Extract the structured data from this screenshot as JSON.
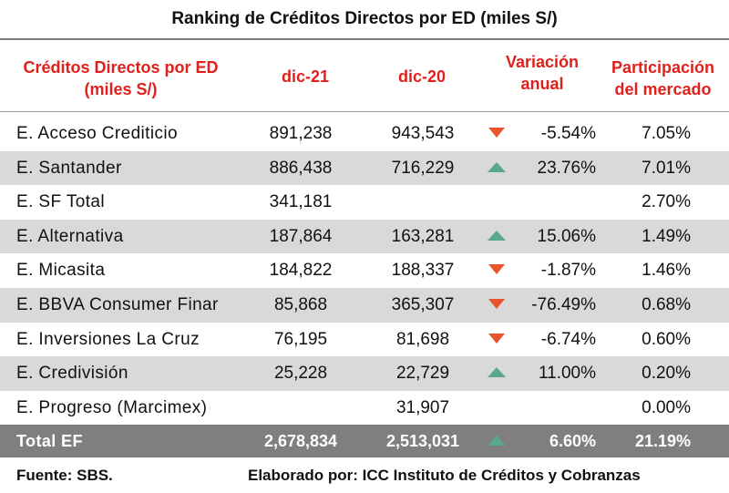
{
  "title": "Ranking de Créditos Directos por ED (miles S/)",
  "headers": {
    "name_line1": "Créditos Directos por ED",
    "name_line2": "(miles S/)",
    "dic21": "dic-21",
    "dic20": "dic-20",
    "var_line1": "Variación",
    "var_line2": "anual",
    "part_line1": "Participación",
    "part_line2": "del mercado"
  },
  "colors": {
    "header_red": "#e0201c",
    "row_shade": "#d9d9d9",
    "total_bg": "#7f7f7f",
    "down_arrow": "#e8542b",
    "up_arrow": "#5aa88a"
  },
  "rows": [
    {
      "name": "E. Acceso Crediticio",
      "dic21": "891,238",
      "dic20": "943,543",
      "trend": "down",
      "var": "-5.54%",
      "part": "7.05%"
    },
    {
      "name": "E. Santander",
      "dic21": "886,438",
      "dic20": "716,229",
      "trend": "up",
      "var": "23.76%",
      "part": "7.01%"
    },
    {
      "name": "E. SF Total",
      "dic21": "341,181",
      "dic20": "",
      "trend": "",
      "var": "",
      "part": "2.70%"
    },
    {
      "name": "E. Alternativa",
      "dic21": "187,864",
      "dic20": "163,281",
      "trend": "up",
      "var": "15.06%",
      "part": "1.49%"
    },
    {
      "name": "E. Micasita",
      "dic21": "184,822",
      "dic20": "188,337",
      "trend": "down",
      "var": "-1.87%",
      "part": "1.46%"
    },
    {
      "name": "E. BBVA Consumer Finar",
      "dic21": "85,868",
      "dic20": "365,307",
      "trend": "down",
      "var": "-76.49%",
      "part": "0.68%"
    },
    {
      "name": "E. Inversiones La Cruz",
      "dic21": "76,195",
      "dic20": "81,698",
      "trend": "down",
      "var": "-6.74%",
      "part": "0.60%"
    },
    {
      "name": "E. Credivisión",
      "dic21": "25,228",
      "dic20": "22,729",
      "trend": "up",
      "var": "11.00%",
      "part": "0.20%"
    },
    {
      "name": "E. Progreso (Marcimex)",
      "dic21": "",
      "dic20": "31,907",
      "trend": "",
      "var": "",
      "part": "0.00%"
    }
  ],
  "total": {
    "name": "Total EF",
    "dic21": "2,678,834",
    "dic20": "2,513,031",
    "trend": "up",
    "var": "6.60%",
    "part": "21.19%"
  },
  "footer": {
    "source": "Fuente: SBS.",
    "prepared_by": "Elaborado por: ICC Instituto de Créditos y Cobranzas"
  }
}
